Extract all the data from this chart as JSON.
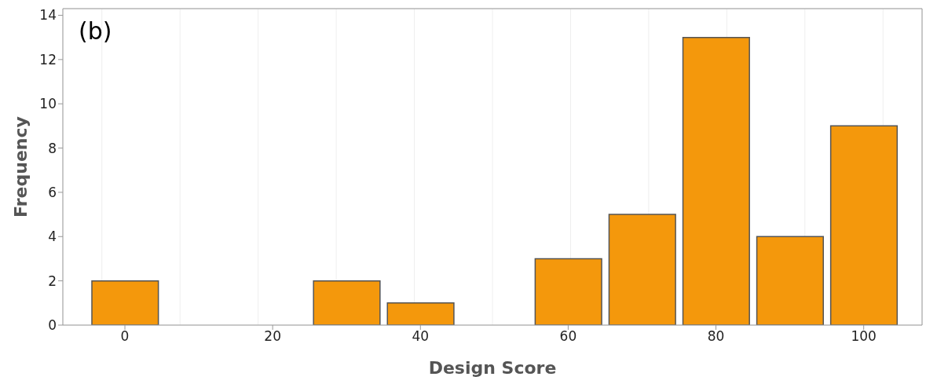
{
  "chart_data": {
    "type": "histogram",
    "xlabel": "Design Score",
    "ylabel": "Frequency",
    "bins": [
      -5,
      5,
      15,
      25,
      35,
      45,
      55,
      65,
      75,
      85,
      95,
      105
    ],
    "values": [
      2,
      0,
      0,
      2,
      1,
      0,
      3,
      5,
      13,
      4,
      9
    ],
    "color": "#f4980c",
    "xlim": [
      -8.4,
      107.9
    ],
    "xticks": [
      0,
      20,
      40,
      60,
      80,
      100
    ],
    "ylim": [
      0,
      14.3
    ],
    "yticks": [
      0,
      2,
      4,
      6,
      8,
      10,
      12,
      14
    ],
    "grid": true,
    "annotations": [
      "(b)"
    ]
  }
}
